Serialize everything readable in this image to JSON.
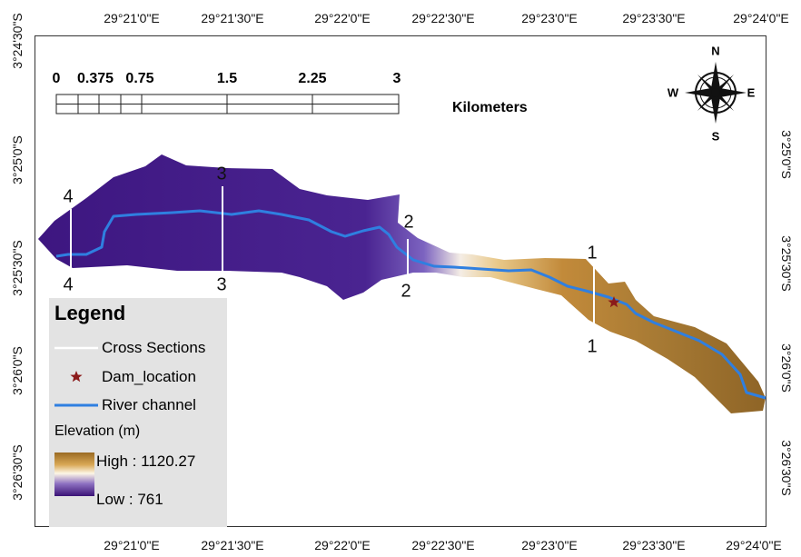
{
  "longitude_ticks": [
    "29°21'0\"E",
    "29°21'30\"E",
    "29°22'0\"E",
    "29°22'30\"E",
    "29°23'0\"E",
    "29°23'30\"E",
    "29°24'0\"E"
  ],
  "latitude_ticks": [
    "3°24'30\"S",
    "3°25'0\"S",
    "3°25'30\"S",
    "3°26'0\"S",
    "3°26'30\"S"
  ],
  "scale_bar": {
    "labels": [
      "0",
      "0.375",
      "0.75",
      "1.5",
      "2.25",
      "3"
    ],
    "unit": "Kilometers"
  },
  "north_arrow": {
    "n": "N",
    "e": "E",
    "s": "S",
    "w": "W"
  },
  "cross_sections": [
    {
      "id": "1",
      "top": "1",
      "bottom": "1"
    },
    {
      "id": "2",
      "top": "2",
      "bottom": "2"
    },
    {
      "id": "3",
      "top": "3",
      "bottom": "3"
    },
    {
      "id": "4",
      "top": "4",
      "bottom": "4"
    }
  ],
  "legend": {
    "title": "Legend",
    "cross_sections": "Cross Sections",
    "dam_location": "Dam_location",
    "river_channel": "River channel",
    "elevation_title": "Elevation (m)",
    "high": "High : 1120.27",
    "low": "Low : 761"
  },
  "colors": {
    "river": "#2f7fe0",
    "low_elevation": "#3a1276",
    "high_elevation": "#9a6a22",
    "dam_marker": "#8b1a1a",
    "legend_bg": "#e3e3e3"
  }
}
